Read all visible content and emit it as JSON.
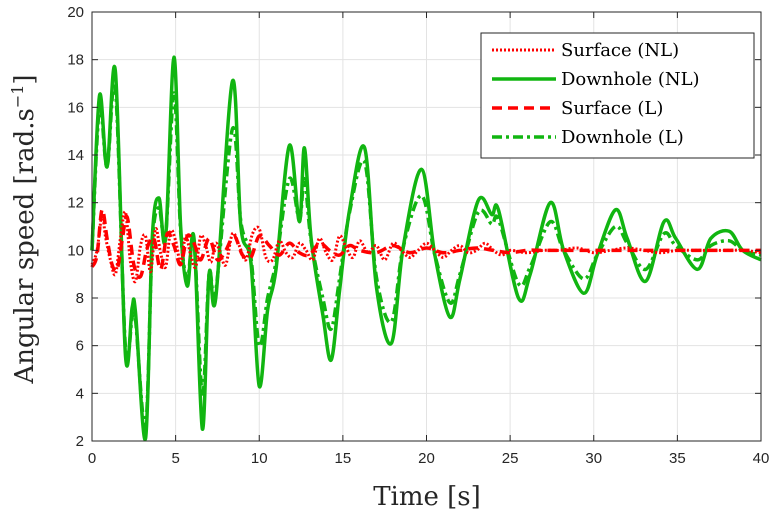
{
  "chart_data": {
    "type": "line",
    "xlabel": "Time [s]",
    "ylabel": "Angular speed [rad.s",
    "ylabel_sup": "−1",
    "ylabel_end": "]",
    "xlim": [
      0,
      40
    ],
    "ylim": [
      2,
      20
    ],
    "xticks": [
      "0",
      "5",
      "10",
      "15",
      "20",
      "25",
      "30",
      "35",
      "40"
    ],
    "yticks": [
      "2",
      "4",
      "6",
      "8",
      "10",
      "12",
      "14",
      "16",
      "18",
      "20"
    ],
    "grid": true,
    "legend_position": "top-right",
    "series": [
      {
        "name": "Surface (NL)",
        "color": "#ff0000",
        "style": "dotted",
        "x": [
          0,
          0.3,
          0.6,
          0.8,
          1.1,
          1.4,
          1.7,
          2.0,
          2.3,
          2.6,
          2.9,
          3.2,
          3.5,
          3.8,
          4.1,
          4.4,
          4.7,
          5.0,
          5.3,
          5.6,
          5.9,
          6.2,
          6.5,
          6.8,
          7.1,
          7.4,
          7.7,
          8.0,
          8.4,
          8.8,
          9.2,
          9.6,
          10.0,
          10.4,
          10.8,
          11.2,
          11.6,
          12.0,
          12.4,
          12.8,
          13.2,
          13.6,
          14.0,
          14.4,
          14.8,
          15.2,
          15.6,
          16.0,
          16.5,
          17.0,
          17.5,
          18.0,
          18.5,
          19.0,
          19.5,
          20.0,
          20.5,
          21.0,
          21.5,
          22.0,
          22.5,
          23.0,
          23.5,
          24.0,
          24.5,
          25.0,
          26,
          27,
          28,
          29,
          30,
          31,
          32,
          33,
          34,
          35,
          36,
          37,
          38,
          39,
          40
        ],
        "y": [
          9.4,
          10.0,
          11.5,
          10.6,
          9.6,
          9.0,
          10.5,
          11.6,
          9.5,
          8.7,
          10.2,
          10.6,
          9.1,
          10.9,
          9.9,
          9.3,
          10.8,
          10.4,
          9.5,
          10.6,
          9.8,
          9.3,
          10.6,
          10.2,
          9.5,
          10.3,
          9.8,
          9.4,
          10.7,
          10.2,
          9.6,
          10.7,
          10.9,
          9.7,
          9.6,
          10.4,
          9.9,
          9.7,
          10.3,
          10.0,
          9.6,
          10.5,
          9.9,
          9.6,
          10.6,
          10.1,
          9.7,
          10.4,
          9.9,
          10.2,
          9.6,
          10.3,
          10.0,
          9.7,
          10.0,
          10.3,
          10.0,
          9.7,
          10.0,
          10.2,
          9.9,
          10.0,
          10.3,
          10.0,
          9.8,
          10.0,
          9.9,
          10.0,
          10.0,
          10.1,
          9.9,
          10.0,
          10.1,
          10.0,
          9.9,
          10.0,
          10.0,
          10.0,
          10.0,
          10.0,
          9.9
        ]
      },
      {
        "name": "Downhole (NL)",
        "color": "#11b511",
        "style": "solid",
        "x": [
          0,
          0.45,
          0.9,
          1.4,
          2.0,
          2.4,
          2.6,
          3.2,
          3.6,
          4.0,
          4.4,
          4.9,
          5.3,
          5.7,
          6.1,
          6.6,
          7.0,
          7.4,
          8.4,
          8.9,
          9.5,
          10.0,
          10.5,
          11.0,
          11.8,
          12.4,
          12.7,
          13.1,
          13.8,
          14.3,
          14.8,
          15.4,
          16.3,
          17.0,
          17.9,
          18.6,
          19.7,
          20.5,
          21.4,
          22.0,
          23.1,
          23.9,
          24.3,
          25.5,
          26.2,
          27.4,
          28.2,
          29.4,
          30.2,
          31.3,
          32.0,
          33.1,
          34.2,
          34.9,
          36.2,
          37.0,
          38.1,
          38.9,
          40
        ],
        "y": [
          10,
          16.5,
          13.5,
          17.5,
          5.6,
          7.6,
          7.4,
          2.1,
          10.5,
          12.2,
          10.5,
          18.1,
          11.0,
          8.5,
          10.5,
          2.5,
          9.0,
          8.0,
          17.1,
          11.0,
          9.5,
          4.3,
          7.5,
          9.2,
          14.4,
          11.2,
          14.3,
          10.5,
          7.3,
          5.4,
          8.3,
          11.7,
          14.3,
          8.5,
          6.1,
          10.1,
          13.4,
          9.8,
          7.2,
          8.8,
          12.1,
          11.5,
          11.7,
          8.0,
          9.0,
          12.0,
          10.0,
          8.2,
          9.8,
          11.7,
          10.5,
          8.7,
          11.2,
          10.5,
          9.2,
          10.5,
          10.8,
          10.0,
          9.6
        ]
      },
      {
        "name": "Surface (L)",
        "color": "#ff0000",
        "style": "dashed",
        "x": [
          0,
          0.3,
          0.6,
          0.9,
          1.2,
          1.5,
          1.8,
          2.1,
          2.5,
          2.9,
          3.3,
          3.7,
          4.1,
          4.5,
          4.9,
          5.3,
          5.7,
          6.1,
          6.5,
          7.0,
          7.5,
          8.0,
          8.5,
          9.0,
          9.5,
          10.0,
          10.6,
          11.2,
          11.8,
          12.4,
          13.0,
          13.6,
          14.2,
          14.8,
          15.4,
          16.0,
          17,
          18,
          19,
          20,
          21,
          22,
          23,
          24,
          25,
          26,
          27,
          28,
          29,
          30,
          32,
          34,
          36,
          38,
          40
        ],
        "y": [
          9.3,
          9.8,
          11.7,
          10.5,
          9.4,
          9.2,
          10.4,
          11.4,
          9.4,
          8.9,
          10.1,
          10.5,
          9.2,
          10.7,
          10.2,
          9.4,
          10.6,
          10.3,
          9.6,
          10.5,
          9.6,
          10.0,
          10.6,
          9.8,
          9.7,
          10.6,
          10.2,
          9.8,
          10.3,
          9.9,
          9.8,
          10.3,
          10.0,
          9.8,
          10.2,
          10.0,
          9.9,
          10.2,
          9.9,
          10.1,
          9.9,
          10.0,
          10.1,
          10.0,
          9.9,
          10.0,
          10.0,
          10.0,
          10.0,
          10.0,
          10.0,
          10.0,
          10.0,
          10.0,
          10.0
        ]
      },
      {
        "name": "Downhole (L)",
        "color": "#11b511",
        "style": "dashdot",
        "x": [
          0,
          0.45,
          0.9,
          1.4,
          2.0,
          2.4,
          2.6,
          3.2,
          3.6,
          4.0,
          4.4,
          4.9,
          5.3,
          5.7,
          6.1,
          6.6,
          7.0,
          7.4,
          8.4,
          8.9,
          9.5,
          10.0,
          10.5,
          11.0,
          11.8,
          12.4,
          12.7,
          13.1,
          13.8,
          14.3,
          14.8,
          15.4,
          16.3,
          17.0,
          17.9,
          18.6,
          19.7,
          20.5,
          21.4,
          22.0,
          23.1,
          23.9,
          24.3,
          25.5,
          26.2,
          27.4,
          28.2,
          29.4,
          30.2,
          31.3,
          32.0,
          33.1,
          34.2,
          34.9,
          36.2,
          37.0,
          38.1,
          38.9,
          40
        ],
        "y": [
          10,
          16.0,
          13.5,
          16.8,
          5.9,
          7.2,
          7.1,
          2.6,
          10.2,
          11.8,
          10.6,
          16.6,
          10.8,
          8.8,
          10.4,
          3.9,
          9.0,
          8.3,
          15.1,
          11.2,
          9.7,
          6.0,
          8.0,
          9.5,
          13.0,
          11.3,
          13.0,
          10.4,
          8.0,
          6.7,
          8.8,
          11.6,
          13.7,
          8.9,
          7.0,
          10.1,
          12.3,
          9.8,
          7.8,
          9.0,
          11.6,
          11.1,
          11.3,
          8.6,
          9.3,
          11.2,
          10.0,
          8.8,
          9.8,
          11.0,
          10.3,
          9.2,
          10.7,
          10.2,
          9.6,
          10.2,
          10.4,
          10.0,
          9.8
        ]
      }
    ]
  }
}
